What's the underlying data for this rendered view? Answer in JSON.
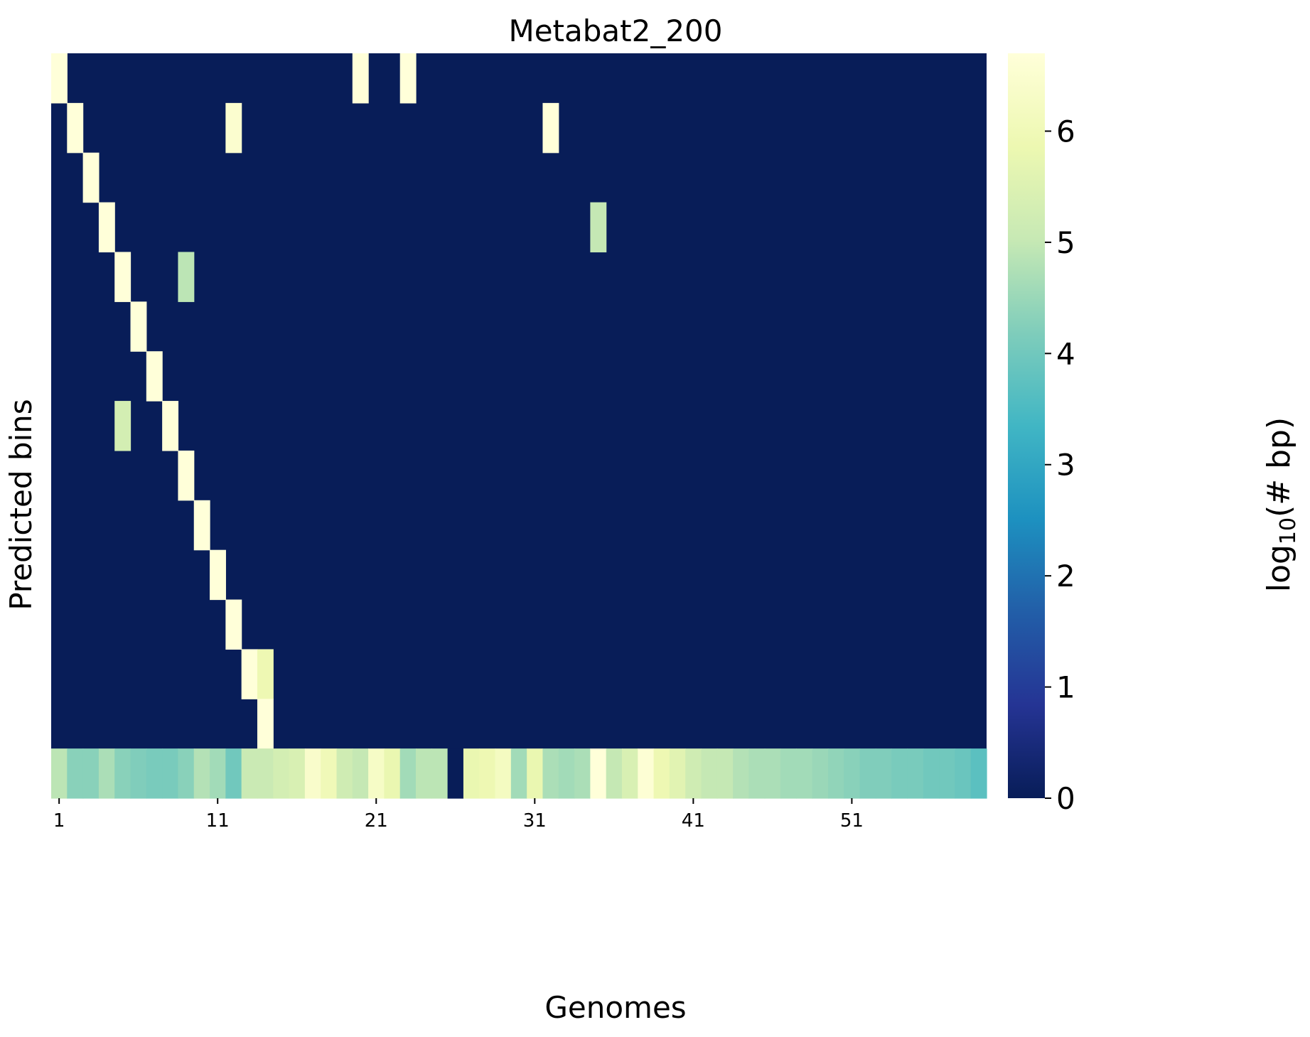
{
  "chart_data": {
    "type": "heatmap",
    "title": "Metabat2_200",
    "xlabel": "Genomes",
    "ylabel": "Predicted bins",
    "n_cols": 59,
    "n_rows": 15,
    "x_tick_labels": [
      {
        "col": 1,
        "label": "1"
      },
      {
        "col": 11,
        "label": "11"
      },
      {
        "col": 21,
        "label": "21"
      },
      {
        "col": 31,
        "label": "31"
      },
      {
        "col": 41,
        "label": "41"
      },
      {
        "col": 51,
        "label": "51"
      }
    ],
    "colorbar": {
      "label_base": "log",
      "label_sub": "10",
      "label_rest": "(# bp)",
      "range": [
        0,
        6.7
      ],
      "ticks": [
        "0",
        "1",
        "2",
        "3",
        "4",
        "5",
        "6"
      ],
      "colormap": "YlGnBu",
      "stops": [
        "#081d58",
        "#253494",
        "#225ea8",
        "#1d91c0",
        "#41b6c4",
        "#7fcdbb",
        "#c7e9b4",
        "#edf8b1",
        "#ffffd9"
      ]
    },
    "background_value": 0,
    "cells": [
      {
        "row": 1,
        "col": 1,
        "value": 6.7
      },
      {
        "row": 1,
        "col": 20,
        "value": 6.7
      },
      {
        "row": 1,
        "col": 23,
        "value": 6.7
      },
      {
        "row": 2,
        "col": 2,
        "value": 6.7
      },
      {
        "row": 2,
        "col": 12,
        "value": 6.5
      },
      {
        "row": 2,
        "col": 32,
        "value": 6.7
      },
      {
        "row": 3,
        "col": 3,
        "value": 6.7
      },
      {
        "row": 4,
        "col": 4,
        "value": 6.7
      },
      {
        "row": 4,
        "col": 35,
        "value": 5.0
      },
      {
        "row": 5,
        "col": 5,
        "value": 6.7
      },
      {
        "row": 5,
        "col": 9,
        "value": 4.9
      },
      {
        "row": 6,
        "col": 6,
        "value": 6.7
      },
      {
        "row": 7,
        "col": 7,
        "value": 6.7
      },
      {
        "row": 8,
        "col": 5,
        "value": 5.3
      },
      {
        "row": 8,
        "col": 8,
        "value": 6.7
      },
      {
        "row": 9,
        "col": 9,
        "value": 6.7
      },
      {
        "row": 10,
        "col": 10,
        "value": 6.7
      },
      {
        "row": 11,
        "col": 11,
        "value": 6.7
      },
      {
        "row": 12,
        "col": 12,
        "value": 6.7
      },
      {
        "row": 13,
        "col": 13,
        "value": 6.7
      },
      {
        "row": 13,
        "col": 14,
        "value": 5.9
      },
      {
        "row": 14,
        "col": 14,
        "value": 6.7
      }
    ],
    "last_row_values": [
      4.9,
      4.3,
      4.3,
      4.7,
      4.3,
      4.2,
      4.1,
      4.1,
      4.3,
      4.8,
      4.6,
      4.0,
      5.1,
      5.1,
      5.3,
      5.4,
      6.4,
      6.0,
      5.2,
      5.0,
      6.3,
      5.8,
      4.6,
      4.9,
      4.9,
      0,
      5.8,
      5.9,
      6.2,
      4.6,
      5.8,
      4.7,
      4.6,
      4.7,
      6.7,
      5.0,
      5.4,
      6.6,
      5.9,
      5.6,
      5.2,
      5.0,
      5.0,
      4.8,
      4.7,
      4.7,
      4.6,
      4.6,
      4.5,
      4.4,
      4.3,
      4.2,
      4.2,
      4.1,
      4.1,
      4.0,
      4.0,
      3.9,
      3.7
    ]
  }
}
